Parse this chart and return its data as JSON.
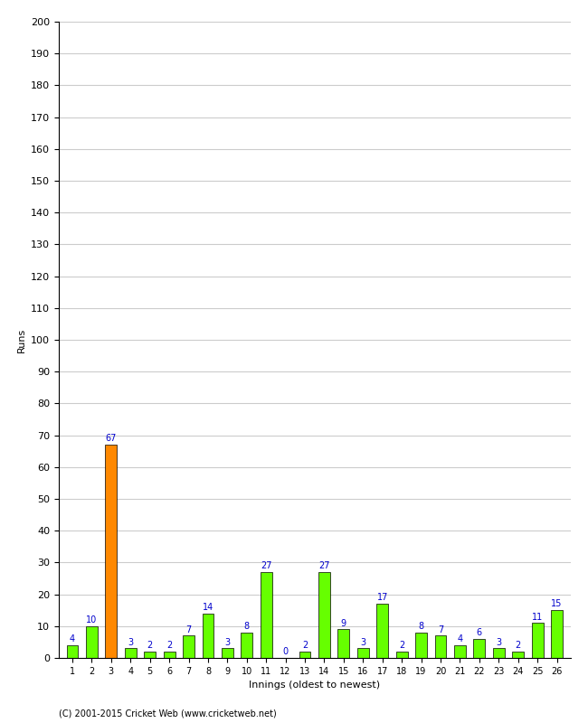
{
  "xlabel": "Innings (oldest to newest)",
  "ylabel": "Runs",
  "values": [
    4,
    10,
    67,
    3,
    2,
    2,
    7,
    14,
    3,
    8,
    27,
    0,
    2,
    27,
    9,
    3,
    17,
    2,
    8,
    7,
    4,
    6,
    3,
    2,
    11,
    15
  ],
  "innings": [
    1,
    2,
    3,
    4,
    5,
    6,
    7,
    8,
    9,
    10,
    11,
    12,
    13,
    14,
    15,
    16,
    17,
    18,
    19,
    20,
    21,
    22,
    23,
    24,
    25,
    26
  ],
  "highlight_index": 2,
  "bar_color": "#66ff00",
  "highlight_color": "#ff8800",
  "label_color": "#0000cc",
  "ylim": [
    0,
    200
  ],
  "yticks": [
    0,
    10,
    20,
    30,
    40,
    50,
    60,
    70,
    80,
    90,
    100,
    110,
    120,
    130,
    140,
    150,
    160,
    170,
    180,
    190,
    200
  ],
  "grid_color": "#cccccc",
  "background_color": "#ffffff",
  "footer": "(C) 2001-2015 Cricket Web (www.cricketweb.net)"
}
